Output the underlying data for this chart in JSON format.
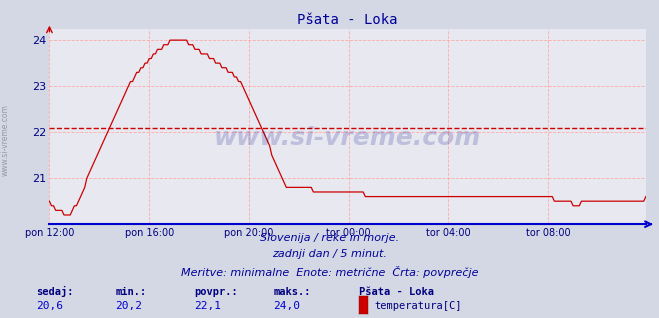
{
  "title": "Pšata - Loka",
  "title_color": "#000099",
  "title_fontsize": 10,
  "bg_color": "#d4d8e4",
  "plot_bg_color": "#e8e8f0",
  "grid_color": "#ffaaaa",
  "avg_line_value": 22.1,
  "avg_line_color": "#cc0000",
  "line_color": "#cc0000",
  "axis_color": "#0000cc",
  "tick_color": "#000080",
  "ylim_min": 20.0,
  "ylim_max": 24.25,
  "yticks": [
    21,
    22,
    23,
    24
  ],
  "subtitle_lines": [
    "Slovenija / reke in morje.",
    "zadnji dan / 5 minut.",
    "Meritve: minimalne  Enote: metrične  Črta: povprečje"
  ],
  "subtitle_color": "#000099",
  "subtitle_fontsize": 8,
  "footer_labels": [
    "sedaj:",
    "min.:",
    "povpr.:",
    "maks.:"
  ],
  "footer_values": [
    "20,6",
    "20,2",
    "22,1",
    "24,0"
  ],
  "footer_station": "Pšata - Loka",
  "footer_series": "temperatura[C]",
  "footer_label_color": "#000080",
  "footer_value_color": "#0000cc",
  "watermark": "www.si-vreme.com",
  "side_label": "www.si-vreme.com",
  "xtick_labels": [
    "pon 12:00",
    "pon 16:00",
    "pon 20:00",
    "tor 00:00",
    "tor 04:00",
    "tor 08:00"
  ],
  "xtick_positions": [
    0,
    48,
    96,
    144,
    192,
    240
  ],
  "temperature_data": [
    20.5,
    20.4,
    20.4,
    20.3,
    20.3,
    20.3,
    20.3,
    20.2,
    20.2,
    20.2,
    20.2,
    20.3,
    20.4,
    20.4,
    20.5,
    20.6,
    20.7,
    20.8,
    21.0,
    21.1,
    21.2,
    21.3,
    21.4,
    21.5,
    21.6,
    21.7,
    21.8,
    21.9,
    22.0,
    22.1,
    22.2,
    22.3,
    22.4,
    22.5,
    22.6,
    22.7,
    22.8,
    22.9,
    23.0,
    23.1,
    23.1,
    23.2,
    23.3,
    23.3,
    23.4,
    23.4,
    23.5,
    23.5,
    23.6,
    23.6,
    23.7,
    23.7,
    23.8,
    23.8,
    23.8,
    23.9,
    23.9,
    23.9,
    24.0,
    24.0,
    24.0,
    24.0,
    24.0,
    24.0,
    24.0,
    24.0,
    24.0,
    23.9,
    23.9,
    23.9,
    23.8,
    23.8,
    23.8,
    23.7,
    23.7,
    23.7,
    23.7,
    23.6,
    23.6,
    23.6,
    23.5,
    23.5,
    23.5,
    23.4,
    23.4,
    23.4,
    23.3,
    23.3,
    23.3,
    23.2,
    23.2,
    23.1,
    23.1,
    23.0,
    22.9,
    22.8,
    22.7,
    22.6,
    22.5,
    22.4,
    22.3,
    22.2,
    22.1,
    22.0,
    21.9,
    21.8,
    21.7,
    21.5,
    21.4,
    21.3,
    21.2,
    21.1,
    21.0,
    20.9,
    20.8,
    20.8,
    20.8,
    20.8,
    20.8,
    20.8,
    20.8,
    20.8,
    20.8,
    20.8,
    20.8,
    20.8,
    20.8,
    20.7,
    20.7,
    20.7,
    20.7,
    20.7,
    20.7,
    20.7,
    20.7,
    20.7,
    20.7,
    20.7,
    20.7,
    20.7,
    20.7,
    20.7,
    20.7,
    20.7,
    20.7,
    20.7,
    20.7,
    20.7,
    20.7,
    20.7,
    20.7,
    20.7,
    20.6,
    20.6,
    20.6,
    20.6,
    20.6,
    20.6,
    20.6,
    20.6,
    20.6,
    20.6,
    20.6,
    20.6,
    20.6,
    20.6,
    20.6,
    20.6,
    20.6,
    20.6,
    20.6,
    20.6,
    20.6,
    20.6,
    20.6,
    20.6,
    20.6,
    20.6,
    20.6,
    20.6,
    20.6,
    20.6,
    20.6,
    20.6,
    20.6,
    20.6,
    20.6,
    20.6,
    20.6,
    20.6,
    20.6,
    20.6,
    20.6,
    20.6,
    20.6,
    20.6,
    20.6,
    20.6,
    20.6,
    20.6,
    20.6,
    20.6,
    20.6,
    20.6,
    20.6,
    20.6,
    20.6,
    20.6,
    20.6,
    20.6,
    20.6,
    20.6,
    20.6,
    20.6,
    20.6,
    20.6,
    20.6,
    20.6,
    20.6,
    20.6,
    20.6,
    20.6,
    20.6,
    20.6,
    20.6,
    20.6,
    20.6,
    20.6,
    20.6,
    20.6,
    20.6,
    20.6,
    20.6,
    20.6,
    20.6,
    20.6,
    20.6,
    20.6,
    20.6,
    20.6,
    20.6,
    20.6,
    20.6,
    20.5,
    20.5,
    20.5,
    20.5,
    20.5,
    20.5,
    20.5,
    20.5,
    20.5,
    20.4,
    20.4,
    20.4,
    20.4,
    20.5,
    20.5,
    20.5,
    20.5,
    20.5,
    20.5,
    20.5,
    20.5,
    20.5,
    20.5,
    20.5,
    20.5,
    20.5,
    20.5,
    20.5,
    20.5,
    20.5,
    20.5,
    20.5,
    20.5,
    20.5,
    20.5,
    20.5,
    20.5,
    20.5,
    20.5,
    20.5,
    20.5,
    20.5,
    20.5,
    20.5,
    20.6
  ]
}
